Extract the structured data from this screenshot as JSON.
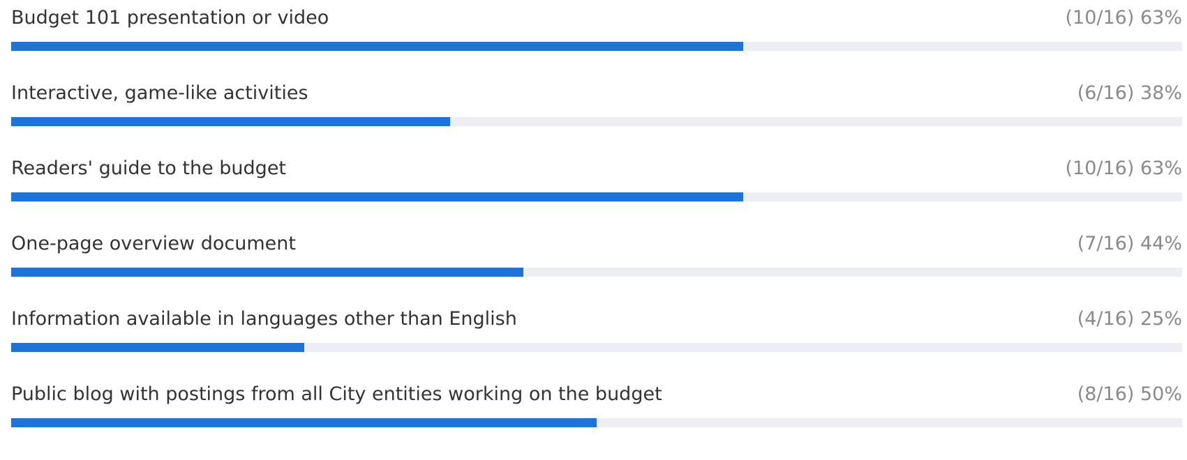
{
  "colors": {
    "bar_fill": "#1f72d7",
    "bar_track": "#eceef3",
    "label_text": "#333333",
    "count_text": "#8a8a8a"
  },
  "chart_data": {
    "type": "bar",
    "orientation": "horizontal",
    "total": 16,
    "categories": [
      "Budget 101 presentation or video",
      "Interactive, game-like activities",
      "Readers' guide to the budget",
      "One-page overview document",
      "Information available in languages other than English",
      "Public blog with postings from all City entities working on the budget"
    ],
    "values": [
      10,
      6,
      10,
      7,
      4,
      8
    ],
    "percent_labels": [
      "(10/16) 63%",
      "(6/16) 38%",
      "(10/16) 63%",
      "(7/16) 44%",
      "(4/16) 25%",
      "(8/16) 50%"
    ]
  }
}
